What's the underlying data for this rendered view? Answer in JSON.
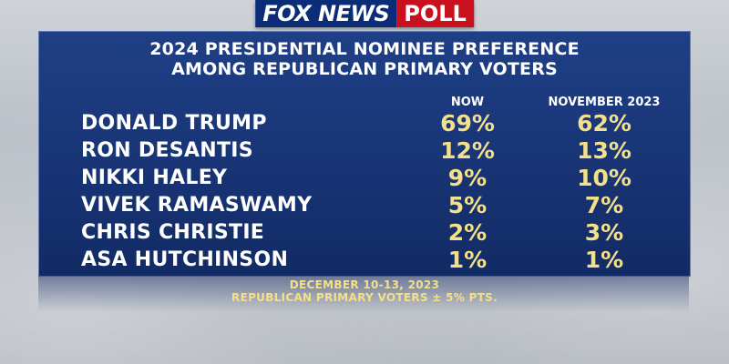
{
  "logo": {
    "fox_text": "FOX NEWS",
    "poll_text": "POLL"
  },
  "colors": {
    "panel": "#1a3877",
    "value": "#f4e08a",
    "text": "#ffffff",
    "logo_blue": "#0b2c77",
    "logo_red": "#c8101e"
  },
  "chart_data": {
    "type": "table",
    "title": "2024 PRESIDENTIAL NOMINEE PREFERENCE",
    "subtitle": "AMONG REPUBLICAN PRIMARY VOTERS",
    "columns": [
      "NOW",
      "NOVEMBER 2023"
    ],
    "rows": [
      {
        "name": "DONALD TRUMP",
        "now": "69%",
        "nov": "62%"
      },
      {
        "name": "RON DESANTIS",
        "now": "12%",
        "nov": "13%"
      },
      {
        "name": "NIKKI HALEY",
        "now": "9%",
        "nov": "10%"
      },
      {
        "name": "VIVEK RAMASWAMY",
        "now": "5%",
        "nov": "7%"
      },
      {
        "name": "CHRIS CHRISTIE",
        "now": "2%",
        "nov": "3%"
      },
      {
        "name": "ASA HUTCHINSON",
        "now": "1%",
        "nov": "1%"
      }
    ],
    "series": [
      {
        "name": "NOW",
        "values": [
          69,
          12,
          9,
          5,
          2,
          1
        ]
      },
      {
        "name": "NOVEMBER 2023",
        "values": [
          62,
          13,
          10,
          7,
          3,
          1
        ]
      }
    ],
    "categories": [
      "DONALD TRUMP",
      "RON DESANTIS",
      "NIKKI HALEY",
      "VIVEK RAMASWAMY",
      "CHRIS CHRISTIE",
      "ASA HUTCHINSON"
    ]
  },
  "footnote": {
    "line1": "DECEMBER 10-13, 2023",
    "line2": "REPUBLICAN PRIMARY VOTERS ± 5% PTS."
  }
}
